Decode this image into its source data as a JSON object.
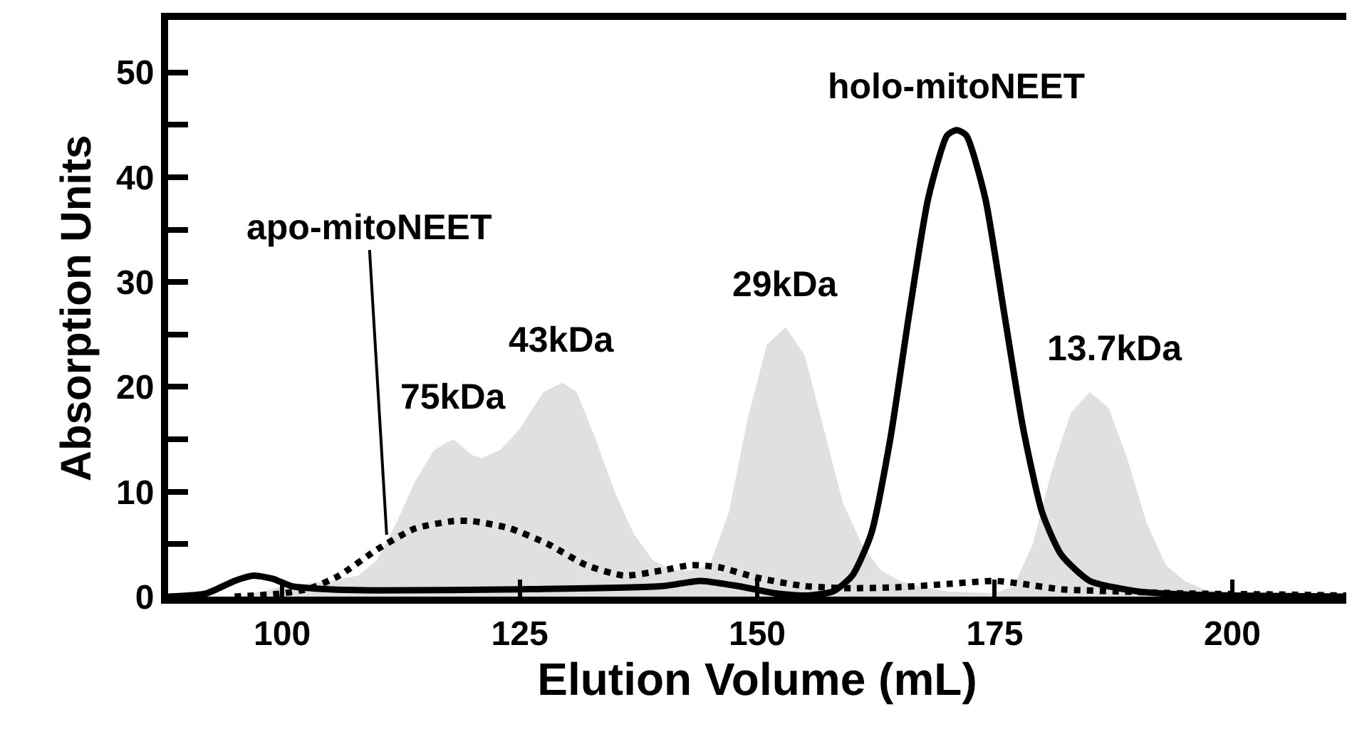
{
  "chart_data": {
    "type": "line",
    "xlabel": "Elution Volume (mL)",
    "ylabel": "Absorption Units",
    "xlim": [
      88,
      212
    ],
    "ylim": [
      0,
      55
    ],
    "xticks": [
      100,
      125,
      150,
      175,
      200
    ],
    "yticks": [
      0,
      {
        "value": 5,
        "label": null
      },
      10,
      {
        "value": 15,
        "label": null
      },
      20,
      {
        "value": 25,
        "label": null
      },
      30,
      {
        "value": 35,
        "label": null
      },
      40,
      {
        "value": 45,
        "label": null
      },
      50
    ],
    "marker": "none",
    "series": [
      {
        "type": "area",
        "color": "#e0e0e0",
        "x": [
          95,
          98,
          100,
          105,
          108,
          110,
          112,
          114,
          116,
          118,
          120,
          121,
          123,
          125,
          127.5,
          129.5,
          131,
          133,
          135,
          137,
          139,
          141,
          143,
          145,
          147,
          149,
          151,
          153,
          155,
          157,
          159,
          161,
          163,
          165,
          167,
          170,
          175,
          177,
          179,
          181,
          183,
          185,
          187,
          189,
          191,
          193,
          195,
          197,
          200,
          205
        ],
        "values": [
          0,
          0.5,
          1,
          1.5,
          2,
          3.5,
          7,
          11,
          14,
          15,
          13.5,
          13.2,
          14,
          16,
          19.5,
          20.4,
          19.5,
          15,
          10,
          6,
          3.5,
          2.5,
          2.5,
          3,
          8,
          17,
          24,
          25.7,
          23,
          16,
          9,
          5,
          2.5,
          1.5,
          1,
          0.5,
          0.3,
          1,
          5,
          12,
          17.5,
          19.5,
          18,
          13,
          7,
          3,
          1.5,
          0.7,
          0.3,
          0
        ]
      },
      {
        "color": "#000000",
        "line_style": "solid",
        "x": [
          88,
          92,
          95,
          97,
          99,
          101,
          105,
          110,
          125,
          140,
          144,
          148,
          152,
          155,
          158,
          160,
          162,
          164,
          166,
          168,
          170,
          171,
          172,
          174,
          176,
          178,
          180,
          182,
          185,
          190,
          195,
          200,
          212
        ],
        "values": [
          0,
          0.3,
          1.5,
          2,
          1.7,
          1,
          0.7,
          0.6,
          0.7,
          1,
          1.5,
          1,
          0.3,
          0.1,
          0.5,
          2,
          6,
          15,
          27,
          38,
          44,
          44.5,
          44,
          38,
          27,
          16,
          8,
          4,
          1.5,
          0.5,
          0.2,
          0.1,
          0
        ]
      },
      {
        "color": "#000000",
        "line_style": "dotted",
        "x": [
          95,
          100,
          103,
          106,
          110,
          114,
          118,
          120,
          124,
          128,
          132,
          136,
          140,
          143,
          146,
          150,
          155,
          160,
          165,
          170,
          175,
          178,
          182,
          188,
          195,
          205,
          212
        ],
        "values": [
          0,
          0.3,
          0.8,
          2,
          4.5,
          6.5,
          7.2,
          7.2,
          6.5,
          5,
          3,
          2,
          2.5,
          3,
          2.8,
          1.8,
          1,
          0.8,
          0.9,
          1.2,
          1.5,
          1.2,
          0.7,
          0.5,
          0.3,
          0.2,
          0.1
        ]
      }
    ],
    "annotations": [
      {
        "text": "apo-mitoNEET",
        "x": 111,
        "y": 5.9
      },
      {
        "text": "75kDa",
        "x": 118,
        "y": 15
      },
      {
        "text": "43kDa",
        "x": 129.5,
        "y": 20.4
      },
      {
        "text": "29kDa",
        "x": 153,
        "y": 25.7
      },
      {
        "text": "holo-mitoNEET",
        "x": 171,
        "y": 44.5
      },
      {
        "text": "13.7kDa",
        "x": 185,
        "y": 19.5
      }
    ]
  }
}
